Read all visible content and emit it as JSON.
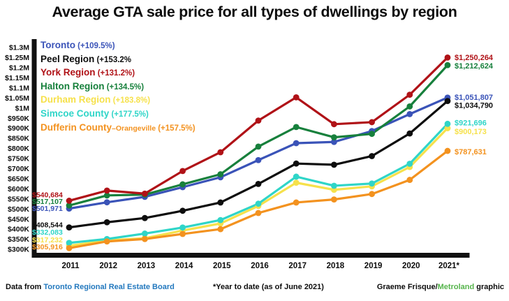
{
  "colors": {
    "toronto": "#3a53b8",
    "peel": "#0d0d0d",
    "york": "#b01217",
    "halton": "#17803c",
    "durham": "#f6e14b",
    "simcoe": "#2fd5c8",
    "dufferin": "#f3921f",
    "axis": "#111111",
    "link_blue": "#2278be",
    "brand_green": "#55b44b",
    "text": "#0c0c0c"
  },
  "chart_data": {
    "type": "line",
    "title": "Average GTA sale price for all types of dwellings by region",
    "xlabel": "",
    "ylabel": "",
    "grid": false,
    "legend_position": "top-left",
    "ylim": [
      300000,
      1300000
    ],
    "y_tick_step": 50000,
    "y_tick_labels": [
      "$1.3M",
      "$1.25M",
      "$1.2M",
      "$1.15M",
      "$1.1M",
      "$1.05M",
      "$1M",
      "$950K",
      "$900K",
      "$850K",
      "$800K",
      "$750K",
      "$700K",
      "$650K",
      "$600K",
      "$550K",
      "$500K",
      "$450K",
      "$400K",
      "$350K",
      "$300K"
    ],
    "x_tick_labels": [
      "2011",
      "2012",
      "2013",
      "2014",
      "2015",
      "2016",
      "2017",
      "2018",
      "2019",
      "2020",
      "2021*"
    ],
    "series": [
      {
        "name": "Toronto",
        "pct_label": "(+109.5%)",
        "color_key": "toronto",
        "start_label": "$501,971",
        "end_label": "$1,051,807",
        "values": [
          501971,
          533000,
          560000,
          608000,
          657000,
          742000,
          826000,
          832000,
          886000,
          970000,
          1051807
        ]
      },
      {
        "name": "Peel Region",
        "pct_label": "(+153.2%",
        "color_key": "peel",
        "start_label": "$408,544",
        "end_label": "$1,034,790",
        "values": [
          408544,
          434000,
          455000,
          491000,
          532000,
          624000,
          725000,
          719000,
          762000,
          874000,
          1034790
        ]
      },
      {
        "name": "York Region",
        "pct_label": "(+131.2%)",
        "color_key": "york",
        "start_label": "$540,684",
        "end_label": "$1,250,264",
        "values": [
          540684,
          591000,
          576000,
          688000,
          781000,
          938000,
          1053000,
          920000,
          930000,
          1066000,
          1250264
        ]
      },
      {
        "name": "Halton Region",
        "pct_label": "(+134.5%)",
        "color_key": "halton",
        "start_label": "$517,107",
        "end_label": "$1,212,624",
        "values": [
          517107,
          567000,
          571000,
          622000,
          672000,
          809000,
          906000,
          855000,
          872000,
          1008000,
          1212624
        ]
      },
      {
        "name": "Durham Region",
        "pct_label": "(+183.8%)",
        "color_key": "durham",
        "start_label": "$317,232",
        "end_label": "$900,173",
        "values": [
          317232,
          344000,
          355000,
          393000,
          428000,
          515000,
          630000,
          595000,
          612000,
          708000,
          900173
        ]
      },
      {
        "name": "Simcoe County",
        "pct_label": "(+177.5%)",
        "color_key": "simcoe",
        "start_label": "$332,083",
        "end_label": "$921,696",
        "values": [
          332083,
          351000,
          378000,
          408000,
          445000,
          526000,
          660000,
          615000,
          626000,
          724000,
          921696
        ]
      },
      {
        "name": "Dufferin County",
        "name_suffix": "–Orangeville",
        "pct_label": "(+157.5%)",
        "color_key": "dufferin",
        "start_label": "$305,916",
        "end_label": "$787,631",
        "values": [
          305916,
          339000,
          351000,
          376000,
          400000,
          480000,
          532000,
          547000,
          574000,
          644000,
          787631
        ]
      }
    ]
  },
  "footer": {
    "source_prefix": "Data from ",
    "source_link": "Toronto Regional Real Estate Board",
    "note": "*Year to date (as of June 2021)",
    "credit_prefix": "Graeme Frisque/",
    "credit_brand": "Metroland",
    "credit_suffix": " graphic"
  }
}
